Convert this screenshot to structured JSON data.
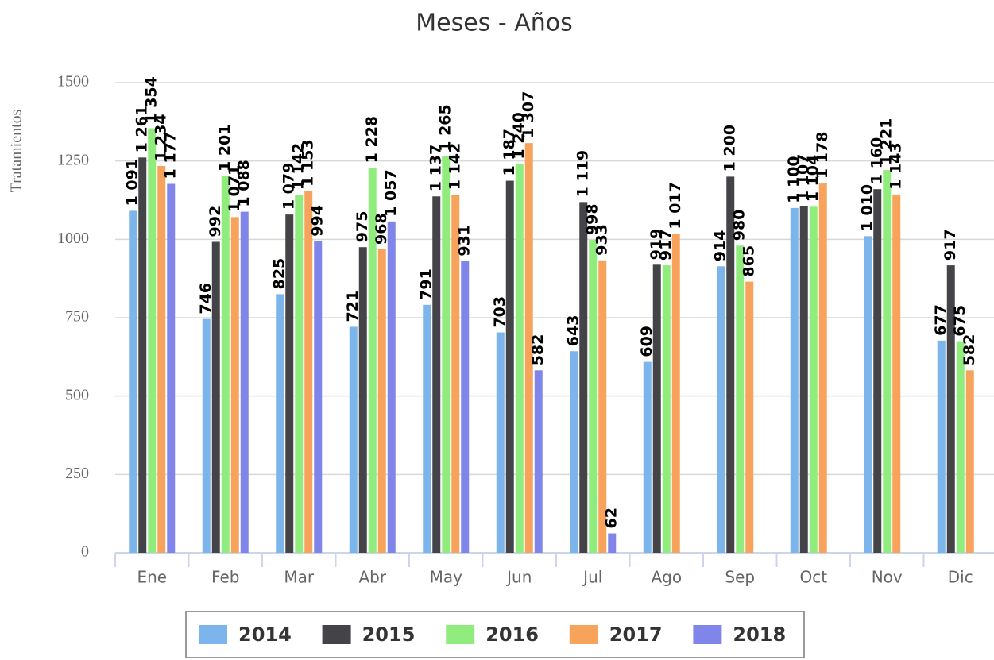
{
  "chart_data": {
    "type": "bar",
    "title": "Meses - Años",
    "y_label": "Tratamientos",
    "categories": [
      "Ene",
      "Feb",
      "Mar",
      "Abr",
      "May",
      "Jun",
      "Jul",
      "Ago",
      "Sep",
      "Oct",
      "Nov",
      "Dic"
    ],
    "ylim": [
      0,
      1500
    ],
    "yticks": [
      0,
      250,
      500,
      750,
      1000,
      1250,
      1500
    ],
    "grid": true,
    "legend": "bottom",
    "series": [
      {
        "name": "2014",
        "color": "#7cb5ec",
        "values": [
          1091,
          746,
          825,
          721,
          791,
          703,
          643,
          609,
          914,
          1100,
          1010,
          677
        ],
        "value_labels": [
          "1 091",
          "746",
          "825",
          "721",
          "791",
          "703",
          "643",
          "609",
          "914",
          "1 100",
          "1 010",
          "677"
        ]
      },
      {
        "name": "2015",
        "color": "#434348",
        "values": [
          1261,
          992,
          1079,
          975,
          1137,
          1187,
          1119,
          919,
          1200,
          1107,
          1160,
          917
        ],
        "value_labels": [
          "1 261",
          "992",
          "1 079",
          "975",
          "1 137",
          "1 187",
          "1 119",
          "919",
          "1 200",
          "1 107",
          "1 160",
          "917"
        ]
      },
      {
        "name": "2016",
        "color": "#90ed7d",
        "values": [
          1354,
          1201,
          1142,
          1228,
          1265,
          1240,
          998,
          917,
          980,
          1104,
          1221,
          675
        ],
        "value_labels": [
          "1 354",
          "1 201",
          "1 142",
          "1 228",
          "1 265",
          "1 240",
          "998",
          "917",
          "980",
          "1 104",
          "1 221",
          "675"
        ]
      },
      {
        "name": "2017",
        "color": "#f7a35c",
        "values": [
          1234,
          1071,
          1153,
          968,
          1142,
          1307,
          933,
          1017,
          865,
          1178,
          1143,
          582
        ],
        "value_labels": [
          "1 234",
          "1 071",
          "1 153",
          "968",
          "1 142",
          "1 307",
          "933",
          "1 017",
          "865",
          "1 178",
          "1 143",
          "582"
        ]
      },
      {
        "name": "2018",
        "color": "#8085e9",
        "values": [
          1177,
          1088,
          994,
          1057,
          931,
          582,
          62,
          null,
          null,
          null,
          null,
          null
        ],
        "value_labels": [
          "1 177",
          "1 088",
          "994",
          "1 057",
          "931",
          "582",
          "62",
          null,
          null,
          null,
          null,
          null
        ]
      }
    ]
  }
}
